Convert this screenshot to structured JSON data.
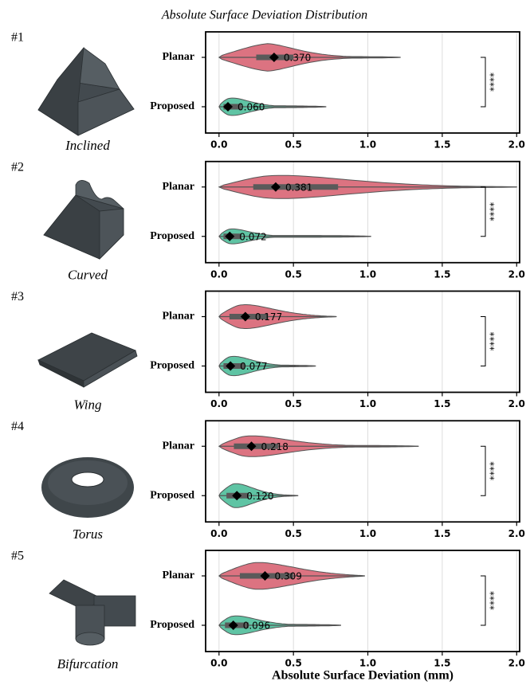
{
  "figure": {
    "title": "Absolute Surface Deviation Distribution",
    "xlabel": "Absolute Surface Deviation (mm)"
  },
  "chart_data": [
    {
      "type": "violin",
      "panel": "#1",
      "shape_label": "Inclined",
      "categories": [
        "Planar",
        "Proposed"
      ],
      "colors": [
        "#dc7381",
        "#5fc4a4"
      ],
      "values": [
        0.37,
        0.06
      ],
      "value_labels": [
        "0.370",
        "0.060"
      ],
      "min": [
        0.0,
        0.0
      ],
      "q1": [
        0.25,
        0.03
      ],
      "q3": [
        0.5,
        0.15
      ],
      "max": [
        1.22,
        0.72
      ],
      "significance": "****",
      "xlim": [
        -0.09,
        2.02
      ],
      "xticks": [
        {
          "value": 0,
          "label": "0.0"
        },
        0.5,
        {
          "value": 1,
          "label": "1.0"
        },
        1.5,
        {
          "value": 2,
          "label": "2.0"
        }
      ],
      "grid": true
    },
    {
      "type": "violin",
      "panel": "#2",
      "shape_label": "Curved",
      "categories": [
        "Planar",
        "Proposed"
      ],
      "colors": [
        "#dc7381",
        "#5fc4a4"
      ],
      "values": [
        0.381,
        0.072
      ],
      "value_labels": [
        "0.381",
        "0.072"
      ],
      "min": [
        0.0,
        0.0
      ],
      "q1": [
        0.23,
        0.03
      ],
      "q3": [
        0.8,
        0.15
      ],
      "max": [
        2.0,
        1.02
      ],
      "significance": "****",
      "xlim": [
        -0.09,
        2.02
      ],
      "xticks": [
        {
          "value": 0,
          "label": "0.0"
        },
        0.5,
        {
          "value": 1,
          "label": "1.0"
        },
        1.5,
        {
          "value": 2,
          "label": "2.0"
        }
      ],
      "grid": true
    },
    {
      "type": "violin",
      "panel": "#3",
      "shape_label": "Wing",
      "categories": [
        "Planar",
        "Proposed"
      ],
      "colors": [
        "#dc7381",
        "#5fc4a4"
      ],
      "values": [
        0.177,
        0.077
      ],
      "value_labels": [
        "0.177",
        "0.077"
      ],
      "min": [
        0.0,
        0.0
      ],
      "q1": [
        0.07,
        0.03
      ],
      "q3": [
        0.33,
        0.17
      ],
      "max": [
        0.79,
        0.65
      ],
      "significance": "****",
      "xlim": [
        -0.09,
        2.02
      ],
      "xticks": [
        {
          "value": 0,
          "label": "0.0"
        },
        0.5,
        {
          "value": 1,
          "label": "1.0"
        },
        1.5,
        {
          "value": 2,
          "label": "2.0"
        }
      ],
      "grid": true
    },
    {
      "type": "violin",
      "panel": "#4",
      "shape_label": "Torus",
      "categories": [
        "Planar",
        "Proposed"
      ],
      "colors": [
        "#dc7381",
        "#5fc4a4"
      ],
      "values": [
        0.218,
        0.12
      ],
      "value_labels": [
        "0.218",
        "0.120"
      ],
      "min": [
        0.0,
        0.0
      ],
      "q1": [
        0.1,
        0.05
      ],
      "q3": [
        0.4,
        0.2
      ],
      "max": [
        1.34,
        0.53
      ],
      "significance": "****",
      "xlim": [
        -0.09,
        2.02
      ],
      "xticks": [
        {
          "value": 0,
          "label": "0.0"
        },
        0.5,
        {
          "value": 1,
          "label": "1.0"
        },
        1.5,
        {
          "value": 2,
          "label": "2.0"
        }
      ],
      "grid": true
    },
    {
      "type": "violin",
      "panel": "#5",
      "shape_label": "Bifurcation",
      "categories": [
        "Planar",
        "Proposed"
      ],
      "colors": [
        "#dc7381",
        "#5fc4a4"
      ],
      "values": [
        0.309,
        0.096
      ],
      "value_labels": [
        "0.309",
        "0.096"
      ],
      "min": [
        0.0,
        0.0
      ],
      "q1": [
        0.14,
        0.04
      ],
      "q3": [
        0.5,
        0.2
      ],
      "max": [
        0.98,
        0.82
      ],
      "significance": "****",
      "xlim": [
        -0.09,
        2.02
      ],
      "xticks": [
        {
          "value": 0,
          "label": "0.0"
        },
        0.5,
        {
          "value": 1,
          "label": "1.0"
        },
        1.5,
        {
          "value": 2,
          "label": "2.0"
        }
      ],
      "grid": true
    }
  ]
}
